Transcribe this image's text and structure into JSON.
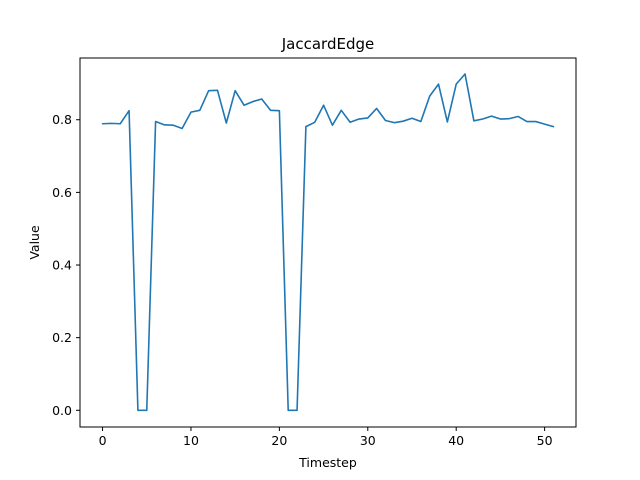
{
  "chart_data": {
    "type": "line",
    "title": "JaccardEdge",
    "xlabel": "Timestep",
    "ylabel": "Value",
    "xlim": [
      -2.55,
      53.55
    ],
    "ylim": [
      -0.046,
      0.97
    ],
    "xticks": [
      0,
      10,
      20,
      30,
      40,
      50
    ],
    "yticks": [
      0.0,
      0.2,
      0.4,
      0.6,
      0.8
    ],
    "ytick_labels": [
      "0.0",
      "0.2",
      "0.4",
      "0.6",
      "0.8"
    ],
    "grid": false,
    "series": [
      {
        "color": "#1f77b4",
        "x": [
          0,
          1,
          2,
          3,
          4,
          5,
          6,
          7,
          8,
          9,
          10,
          11,
          12,
          13,
          14,
          15,
          16,
          17,
          18,
          19,
          20,
          21,
          22,
          23,
          24,
          25,
          26,
          27,
          28,
          29,
          30,
          31,
          32,
          33,
          34,
          35,
          36,
          37,
          38,
          39,
          40,
          41,
          42,
          43,
          44,
          45,
          46,
          47,
          48,
          49,
          50,
          51
        ],
        "values": [
          0.789,
          0.79,
          0.789,
          0.825,
          0.0,
          0.0,
          0.795,
          0.786,
          0.785,
          0.776,
          0.821,
          0.826,
          0.88,
          0.881,
          0.791,
          0.88,
          0.84,
          0.85,
          0.857,
          0.826,
          0.825,
          0.0,
          0.0,
          0.781,
          0.793,
          0.84,
          0.785,
          0.826,
          0.793,
          0.802,
          0.805,
          0.831,
          0.798,
          0.792,
          0.796,
          0.804,
          0.795,
          0.865,
          0.898,
          0.794,
          0.898,
          0.926,
          0.797,
          0.802,
          0.81,
          0.802,
          0.803,
          0.809,
          0.795,
          0.795,
          0.788,
          0.781
        ]
      }
    ]
  }
}
